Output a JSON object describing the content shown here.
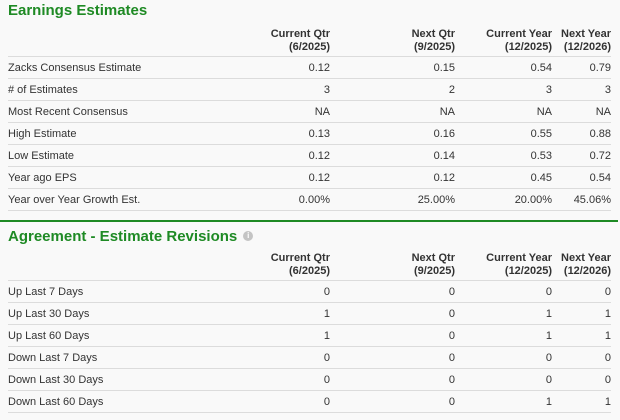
{
  "earnings_estimates": {
    "title": "Earnings Estimates",
    "columns": [
      {
        "line1": "Current Qtr",
        "line2": "(6/2025)"
      },
      {
        "line1": "Next Qtr",
        "line2": "(9/2025)"
      },
      {
        "line1": "Current Year",
        "line2": "(12/2025)"
      },
      {
        "line1": "Next Year",
        "line2": "(12/2026)"
      }
    ],
    "rows": [
      {
        "label": "Zacks Consensus Estimate",
        "values": [
          "0.12",
          "0.15",
          "0.54",
          "0.79"
        ]
      },
      {
        "label": "# of Estimates",
        "values": [
          "3",
          "2",
          "3",
          "3"
        ]
      },
      {
        "label": "Most Recent Consensus",
        "values": [
          "NA",
          "NA",
          "NA",
          "NA"
        ]
      },
      {
        "label": "High Estimate",
        "values": [
          "0.13",
          "0.16",
          "0.55",
          "0.88"
        ]
      },
      {
        "label": "Low Estimate",
        "values": [
          "0.12",
          "0.14",
          "0.53",
          "0.72"
        ]
      },
      {
        "label": "Year ago EPS",
        "values": [
          "0.12",
          "0.12",
          "0.45",
          "0.54"
        ]
      },
      {
        "label": "Year over Year Growth Est.",
        "values": [
          "0.00%",
          "25.00%",
          "20.00%",
          "45.06%"
        ]
      }
    ]
  },
  "agreement": {
    "title": "Agreement - Estimate Revisions",
    "info_icon": "i",
    "columns": [
      {
        "line1": "Current Qtr",
        "line2": "(6/2025)"
      },
      {
        "line1": "Next Qtr",
        "line2": "(9/2025)"
      },
      {
        "line1": "Current Year",
        "line2": "(12/2025)"
      },
      {
        "line1": "Next Year",
        "line2": "(12/2026)"
      }
    ],
    "rows": [
      {
        "label": "Up Last 7 Days",
        "values": [
          "0",
          "0",
          "0",
          "0"
        ]
      },
      {
        "label": "Up Last 30 Days",
        "values": [
          "1",
          "0",
          "1",
          "1"
        ]
      },
      {
        "label": "Up Last 60 Days",
        "values": [
          "1",
          "0",
          "1",
          "1"
        ]
      },
      {
        "label": "Down Last 7 Days",
        "values": [
          "0",
          "0",
          "0",
          "0"
        ]
      },
      {
        "label": "Down Last 30 Days",
        "values": [
          "0",
          "0",
          "0",
          "0"
        ]
      },
      {
        "label": "Down Last 60 Days",
        "values": [
          "0",
          "0",
          "1",
          "1"
        ]
      }
    ]
  },
  "colors": {
    "accent": "#1e8a24",
    "rule": "#dcdcdc",
    "background": "#f9f9f9"
  }
}
